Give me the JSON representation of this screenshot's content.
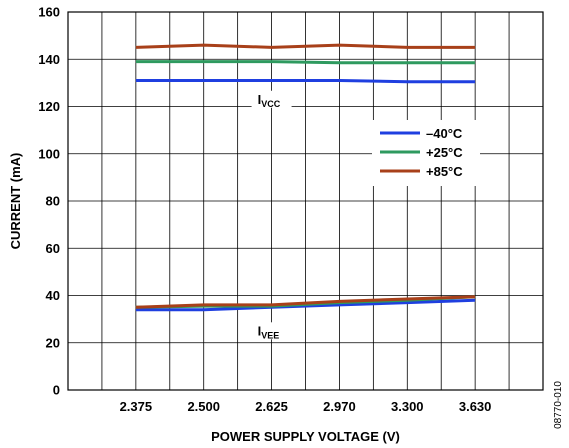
{
  "chart_data": {
    "type": "line",
    "xlabel": "POWER SUPPLY VOLTAGE (V)",
    "ylabel": "CURRENT (mA)",
    "categories": [
      "2.375",
      "2.500",
      "2.625",
      "2.970",
      "3.300",
      "3.630"
    ],
    "ylim": [
      0,
      160
    ],
    "yticks": [
      0,
      20,
      40,
      60,
      80,
      100,
      120,
      140,
      160
    ],
    "grid": true,
    "legend_position": "right",
    "series": [
      {
        "name": "–40°C",
        "color": "#1f3fe0",
        "group": "IVCC",
        "values": [
          131,
          131,
          131,
          131,
          130.5,
          130.5
        ]
      },
      {
        "name": "+25°C",
        "color": "#2e9a5f",
        "group": "IVCC",
        "values": [
          139,
          139,
          139,
          138.5,
          138.5,
          138.5
        ]
      },
      {
        "name": "+85°C",
        "color": "#a8401a",
        "group": "IVCC",
        "values": [
          145,
          146,
          145,
          146,
          145,
          145
        ]
      },
      {
        "name": "–40°C",
        "color": "#1f3fe0",
        "group": "IVEE",
        "values": [
          34,
          34,
          35,
          36,
          37,
          38
        ]
      },
      {
        "name": "+25°C",
        "color": "#2e9a5f",
        "group": "IVEE",
        "values": [
          35,
          35.5,
          35.5,
          37,
          38,
          39.5
        ]
      },
      {
        "name": "+85°C",
        "color": "#a8401a",
        "group": "IVEE",
        "values": [
          35,
          36,
          36,
          37.5,
          38.5,
          39.5
        ]
      }
    ],
    "annotations": [
      {
        "text": "I",
        "sub": "VCC",
        "x_index": 2,
        "y": 122
      },
      {
        "text": "I",
        "sub": "VEE",
        "x_index": 2,
        "y": 24
      }
    ],
    "legend": [
      {
        "label": "–40°C",
        "color": "#1f3fe0"
      },
      {
        "label": "+25°C",
        "color": "#2e9a5f"
      },
      {
        "label": "+85°C",
        "color": "#a8401a"
      }
    ],
    "figure_id": "08770-010"
  }
}
